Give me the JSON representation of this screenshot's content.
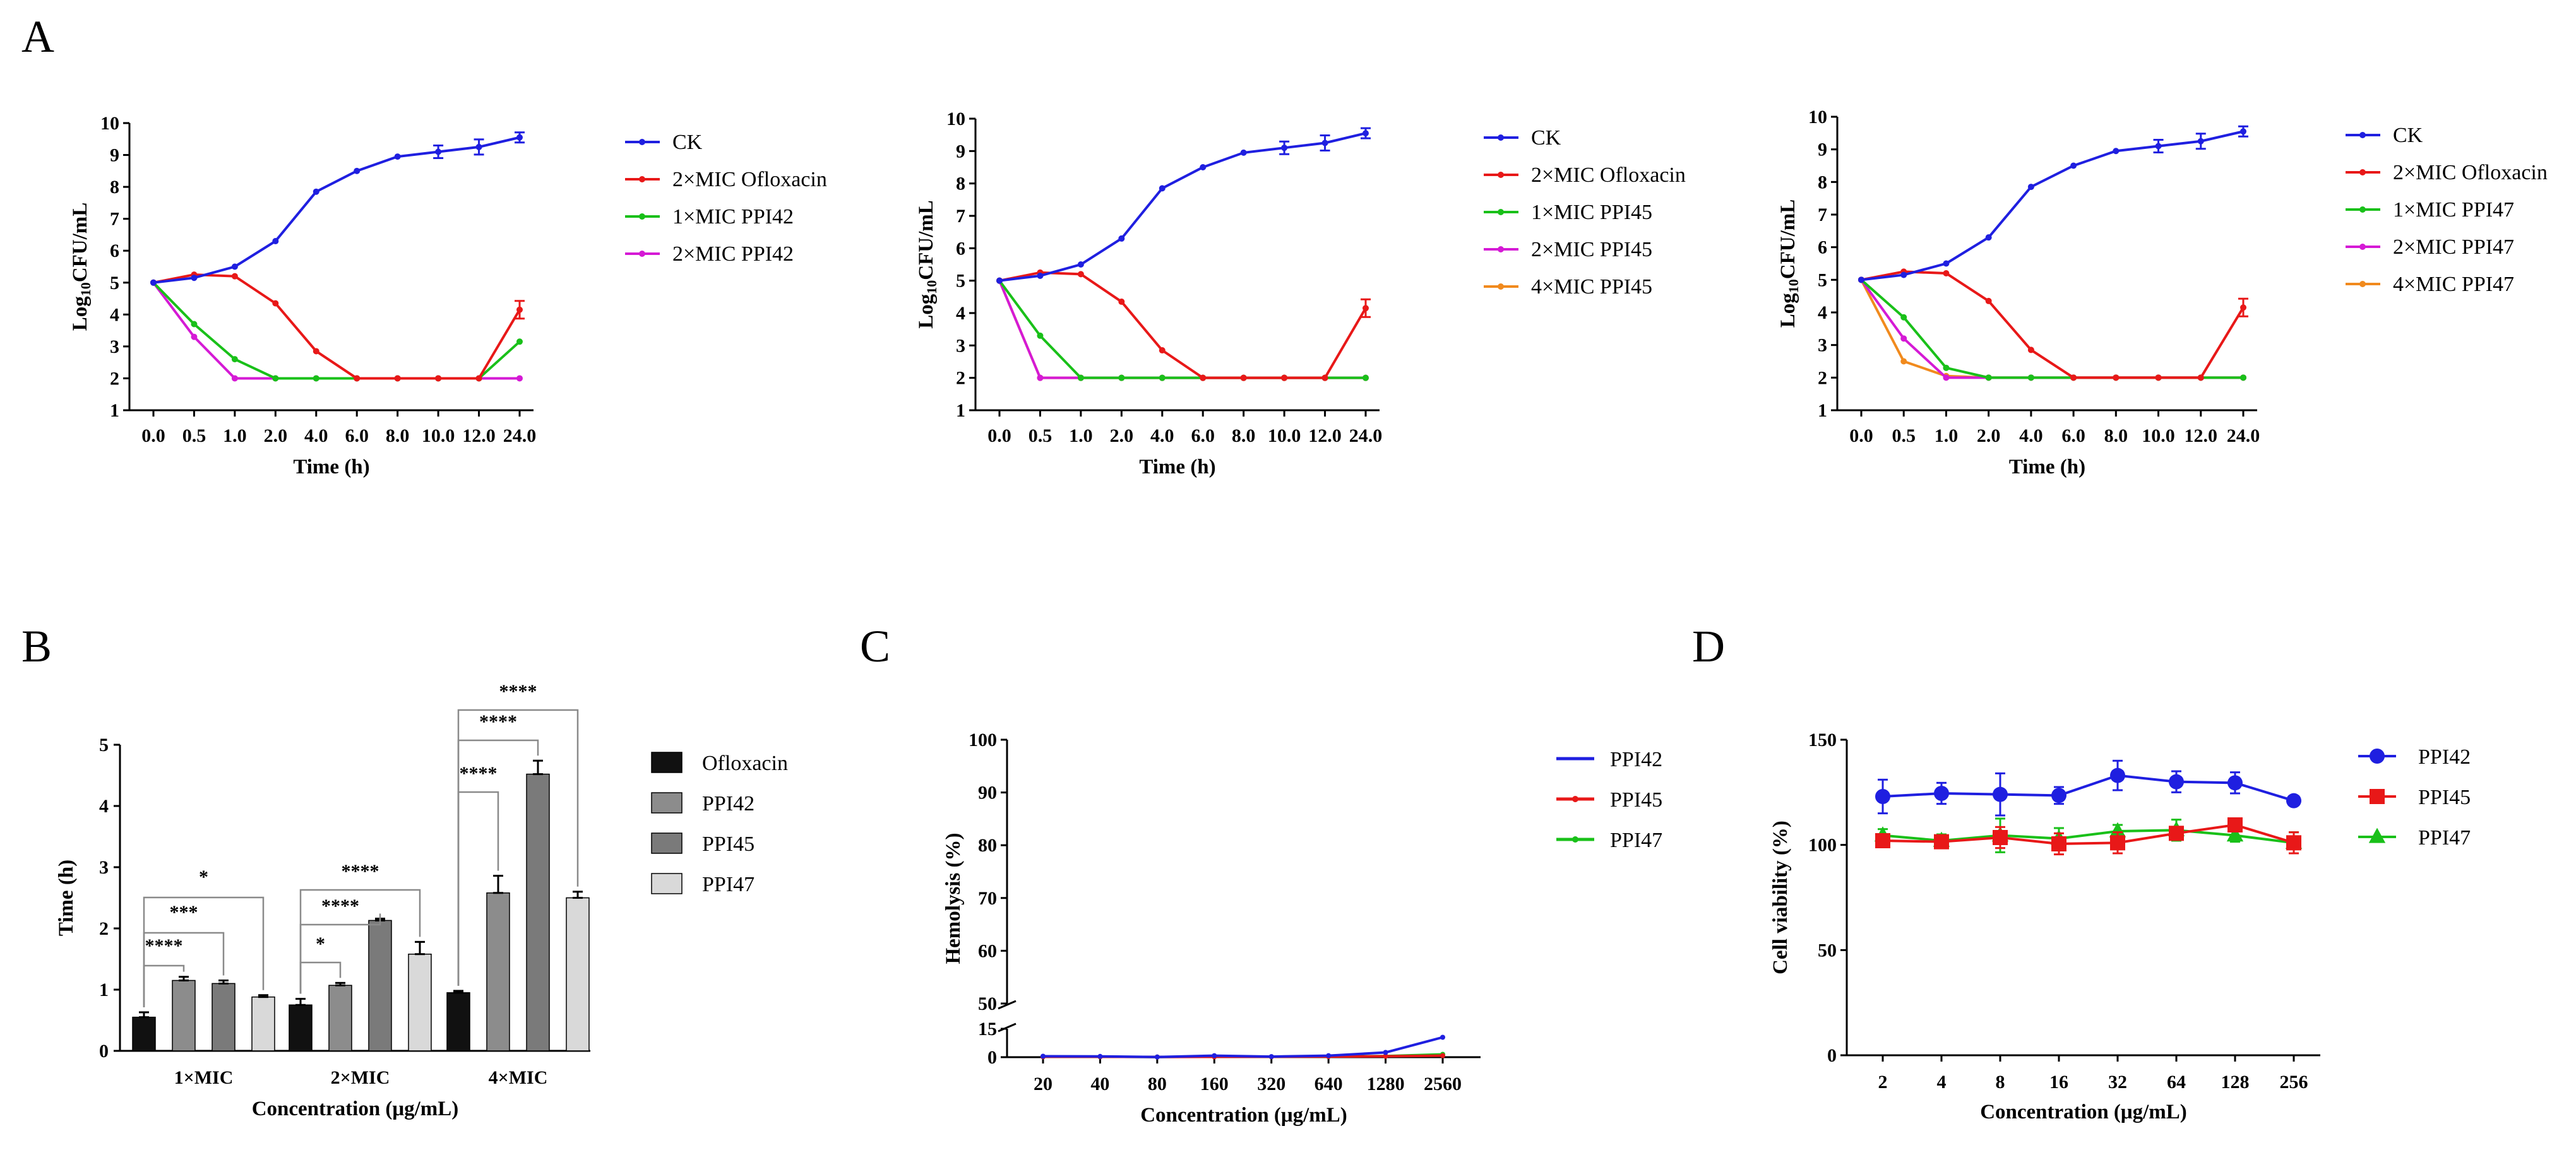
{
  "panels": {
    "A": "A",
    "B": "B",
    "C": "C",
    "D": "D"
  },
  "colors": {
    "CK": "#1f1fe0",
    "ofloxacin": "#e81818",
    "low": "#19c019",
    "mid": "#d51ad5",
    "high": "#f18a1d"
  },
  "chart_data": [
    {
      "type": "line",
      "panel": "A",
      "x": [
        "0.0",
        "0.5",
        "1.0",
        "2.0",
        "4.0",
        "6.0",
        "8.0",
        "10.0",
        "12.0",
        "24.0"
      ],
      "xlabel": "Time (h)",
      "ylabel_main": "Log",
      "ylabel_sub": "10",
      "ylabel_rest": "CFU/mL",
      "ylim": [
        1,
        10
      ],
      "yticks": [
        1,
        2,
        3,
        4,
        5,
        6,
        7,
        8,
        9,
        10
      ],
      "legend_position": "right",
      "series": [
        {
          "name": "CK",
          "color": "#1f1fe0",
          "values": [
            5.0,
            5.15,
            5.5,
            6.3,
            7.85,
            8.5,
            8.95,
            9.1,
            9.25,
            9.55
          ]
        },
        {
          "name": "2×MIC Ofloxacin",
          "color": "#e81818",
          "values": [
            5.0,
            5.25,
            5.2,
            4.35,
            2.85,
            2.0,
            2.0,
            2.0,
            2.0,
            4.15
          ]
        },
        {
          "name": "1×MIC PPI42",
          "color": "#19c019",
          "values": [
            5.0,
            3.7,
            2.6,
            2.0,
            2.0,
            2.0,
            2.0,
            2.0,
            2.0,
            3.15
          ]
        },
        {
          "name": "2×MIC PPI42",
          "color": "#d51ad5",
          "values": [
            5.0,
            3.3,
            2.0,
            2.0,
            2.0,
            2.0,
            2.0,
            2.0,
            2.0,
            2.0
          ]
        }
      ]
    },
    {
      "type": "line",
      "panel": "A",
      "x": [
        "0.0",
        "0.5",
        "1.0",
        "2.0",
        "4.0",
        "6.0",
        "8.0",
        "10.0",
        "12.0",
        "24.0"
      ],
      "xlabel": "Time (h)",
      "ylabel_main": "Log",
      "ylabel_sub": "10",
      "ylabel_rest": "CFU/mL",
      "ylim": [
        1,
        10
      ],
      "yticks": [
        1,
        2,
        3,
        4,
        5,
        6,
        7,
        8,
        9,
        10
      ],
      "legend_position": "right",
      "series": [
        {
          "name": "CK",
          "color": "#1f1fe0",
          "values": [
            5.0,
            5.15,
            5.5,
            6.3,
            7.85,
            8.5,
            8.95,
            9.1,
            9.25,
            9.55
          ]
        },
        {
          "name": "2×MIC Ofloxacin",
          "color": "#e81818",
          "values": [
            5.0,
            5.25,
            5.2,
            4.35,
            2.85,
            2.0,
            2.0,
            2.0,
            2.0,
            4.15
          ]
        },
        {
          "name": "1×MIC PPI45",
          "color": "#19c019",
          "values": [
            5.0,
            3.3,
            2.0,
            2.0,
            2.0,
            2.0,
            2.0,
            2.0,
            2.0,
            2.0
          ]
        },
        {
          "name": "2×MIC PPI45",
          "color": "#d51ad5",
          "values": [
            5.0,
            2.0,
            2.0,
            2.0,
            2.0,
            2.0,
            2.0,
            2.0,
            2.0,
            2.0
          ]
        },
        {
          "name": "4×MIC PPI45",
          "color": "#f18a1d",
          "values": [
            5.0,
            2.0,
            2.0,
            2.0,
            2.0,
            2.0,
            2.0,
            2.0,
            2.0,
            2.0
          ]
        }
      ]
    },
    {
      "type": "line",
      "panel": "A",
      "x": [
        "0.0",
        "0.5",
        "1.0",
        "2.0",
        "4.0",
        "6.0",
        "8.0",
        "10.0",
        "12.0",
        "24.0"
      ],
      "xlabel": "Time (h)",
      "ylabel_main": "Log",
      "ylabel_sub": "10",
      "ylabel_rest": "CFU/mL",
      "ylim": [
        1,
        10
      ],
      "yticks": [
        1,
        2,
        3,
        4,
        5,
        6,
        7,
        8,
        9,
        10
      ],
      "legend_position": "right",
      "series": [
        {
          "name": "CK",
          "color": "#1f1fe0",
          "values": [
            5.0,
            5.15,
            5.5,
            6.3,
            7.85,
            8.5,
            8.95,
            9.1,
            9.25,
            9.55
          ]
        },
        {
          "name": "2×MIC Ofloxacin",
          "color": "#e81818",
          "values": [
            5.0,
            5.25,
            5.2,
            4.35,
            2.85,
            2.0,
            2.0,
            2.0,
            2.0,
            4.15
          ]
        },
        {
          "name": "1×MIC PPI47",
          "color": "#19c019",
          "values": [
            5.0,
            3.85,
            2.3,
            2.0,
            2.0,
            2.0,
            2.0,
            2.0,
            2.0,
            2.0
          ]
        },
        {
          "name": "2×MIC PPI47",
          "color": "#d51ad5",
          "values": [
            5.0,
            3.2,
            2.0,
            2.0,
            2.0,
            2.0,
            2.0,
            2.0,
            2.0,
            2.0
          ]
        },
        {
          "name": "4×MIC PPI47",
          "color": "#f18a1d",
          "values": [
            5.0,
            2.5,
            2.05,
            2.0,
            2.0,
            2.0,
            2.0,
            2.0,
            2.0,
            2.0
          ]
        }
      ]
    },
    {
      "type": "bar",
      "panel": "B",
      "categories": [
        "1×MIC",
        "2×MIC",
        "4×MIC"
      ],
      "xlabel": "Concentration (μg/mL)",
      "ylabel": "Time (h)",
      "ylim": [
        0,
        5
      ],
      "yticks": [
        0,
        1,
        2,
        3,
        4,
        5
      ],
      "legend_position": "right",
      "series": [
        {
          "name": "Ofloxacin",
          "color": "#111111",
          "values": [
            0.55,
            0.75,
            0.95
          ],
          "errors": [
            0.08,
            0.1,
            0.03
          ]
        },
        {
          "name": "PPI42",
          "color": "#8c8c8c",
          "values": [
            1.15,
            1.07,
            2.58
          ],
          "errors": [
            0.06,
            0.04,
            0.28
          ]
        },
        {
          "name": "PPI45",
          "color": "#7a7a7a",
          "values": [
            1.1,
            2.13,
            4.52
          ],
          "errors": [
            0.05,
            0.03,
            0.22
          ]
        },
        {
          "name": "PPI47",
          "color": "#d9d9d9",
          "values": [
            0.88,
            1.58,
            2.5
          ],
          "errors": [
            0.03,
            0.2,
            0.1
          ]
        }
      ],
      "significance": [
        {
          "group": 0,
          "to": 1,
          "label": "****"
        },
        {
          "group": 0,
          "to": 2,
          "label": "***"
        },
        {
          "group": 0,
          "to": 3,
          "label": "*"
        },
        {
          "group": 1,
          "to": 1,
          "label": "*"
        },
        {
          "group": 1,
          "to": 2,
          "label": "****"
        },
        {
          "group": 1,
          "to": 3,
          "label": "****"
        },
        {
          "group": 2,
          "to": 1,
          "label": "****"
        },
        {
          "group": 2,
          "to": 2,
          "label": "****"
        },
        {
          "group": 2,
          "to": 3,
          "label": "****"
        }
      ]
    },
    {
      "type": "line",
      "panel": "C",
      "x": [
        "20",
        "40",
        "80",
        "160",
        "320",
        "640",
        "1280",
        "2560"
      ],
      "xlabel": "Concentration (μg/mL)",
      "ylabel": "Hemolysis (%)",
      "yticks_lower": [
        0,
        15
      ],
      "yticks_upper": [
        50,
        60,
        70,
        80,
        90,
        100
      ],
      "axis_break": [
        15,
        50
      ],
      "legend_position": "right",
      "series": [
        {
          "name": "PPI42",
          "color": "#1f1fe0",
          "values": [
            0.5,
            0.4,
            0.1,
            0.8,
            0.3,
            0.8,
            2.5,
            10.5
          ]
        },
        {
          "name": "PPI45",
          "color": "#e81818",
          "values": [
            0.2,
            0.2,
            0.1,
            0.2,
            0.2,
            0.3,
            0.5,
            0.8
          ]
        },
        {
          "name": "PPI47",
          "color": "#19c019",
          "values": [
            0.2,
            0.2,
            0.1,
            0.3,
            0.2,
            0.3,
            0.6,
            1.5
          ]
        }
      ]
    },
    {
      "type": "line",
      "panel": "D",
      "x": [
        "2",
        "4",
        "8",
        "16",
        "32",
        "64",
        "128",
        "256"
      ],
      "xlabel": "Concentration (μg/mL)",
      "ylabel": "Cell viability (%)",
      "ylim": [
        0,
        150
      ],
      "yticks": [
        0,
        50,
        100,
        150
      ],
      "legend_position": "right",
      "series": [
        {
          "name": "PPI42",
          "color": "#1f1fe0",
          "marker": "circle",
          "values": [
            123,
            124.5,
            124,
            123.5,
            133,
            130,
            129.5,
            121
          ],
          "errors": [
            8,
            5,
            10,
            4,
            7,
            5,
            5,
            2
          ]
        },
        {
          "name": "PPI45",
          "color": "#e81818",
          "marker": "square",
          "values": [
            102,
            101.5,
            103.5,
            100.5,
            101,
            105.5,
            109.5,
            101
          ],
          "errors": [
            3,
            2,
            5,
            5,
            5,
            2,
            2,
            5
          ]
        },
        {
          "name": "PPI47",
          "color": "#19c019",
          "marker": "triangle",
          "values": [
            104.5,
            102,
            104.5,
            103,
            106.5,
            107,
            104.5,
            101
          ],
          "errors": [
            3,
            3,
            8,
            5,
            3,
            5,
            3,
            5
          ]
        }
      ]
    }
  ]
}
